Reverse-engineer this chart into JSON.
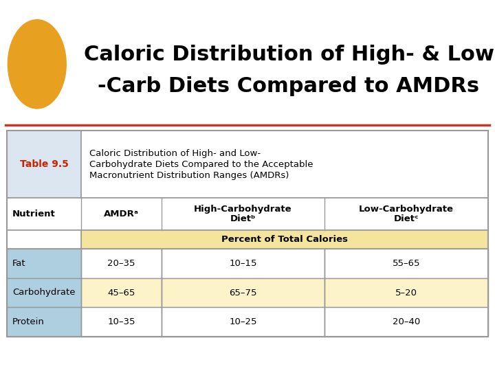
{
  "title_line1": "Caloric Distribution of High- & Low",
  "title_line2": "-Carb Diets Compared to AMDRs",
  "table_label": "Table 9.5",
  "table_desc_line1": "Caloric Distribution of High- and Low-",
  "table_desc_line2": "Carbohydrate Diets Compared to the Acceptable",
  "table_desc_line3": "Macronutrient Distribution Ranges (AMDRs)",
  "col_headers_row1": [
    "",
    "",
    "High-Carbohydrate",
    "Low-Carbohydrate"
  ],
  "col_headers_row2": [
    "Nutrient",
    "AMDRᵃ",
    "Dietᵇ",
    "Dietᶜ"
  ],
  "subheader": "Percent of Total Calories",
  "rows": [
    [
      "Fat",
      "20–35",
      "10–15",
      "55–65"
    ],
    [
      "Carbohydrate",
      "45–65",
      "65–75",
      "5–20"
    ],
    [
      "Protein",
      "10–35",
      "10–25",
      "20–40"
    ]
  ],
  "bg_color": "#ffffff",
  "table_title_bg": "#dce6f0",
  "table_label_color": "#cc2200",
  "row_blue": "#aecfe0",
  "row_yellow": "#fdf3c8",
  "subheader_yellow": "#f5e49e",
  "separator_red": "#c0392b",
  "outer_border": "#999999",
  "nutr_bg": "#1a1a2e",
  "nutr_text": "#ffffff",
  "orange_circle": "#e8a020"
}
